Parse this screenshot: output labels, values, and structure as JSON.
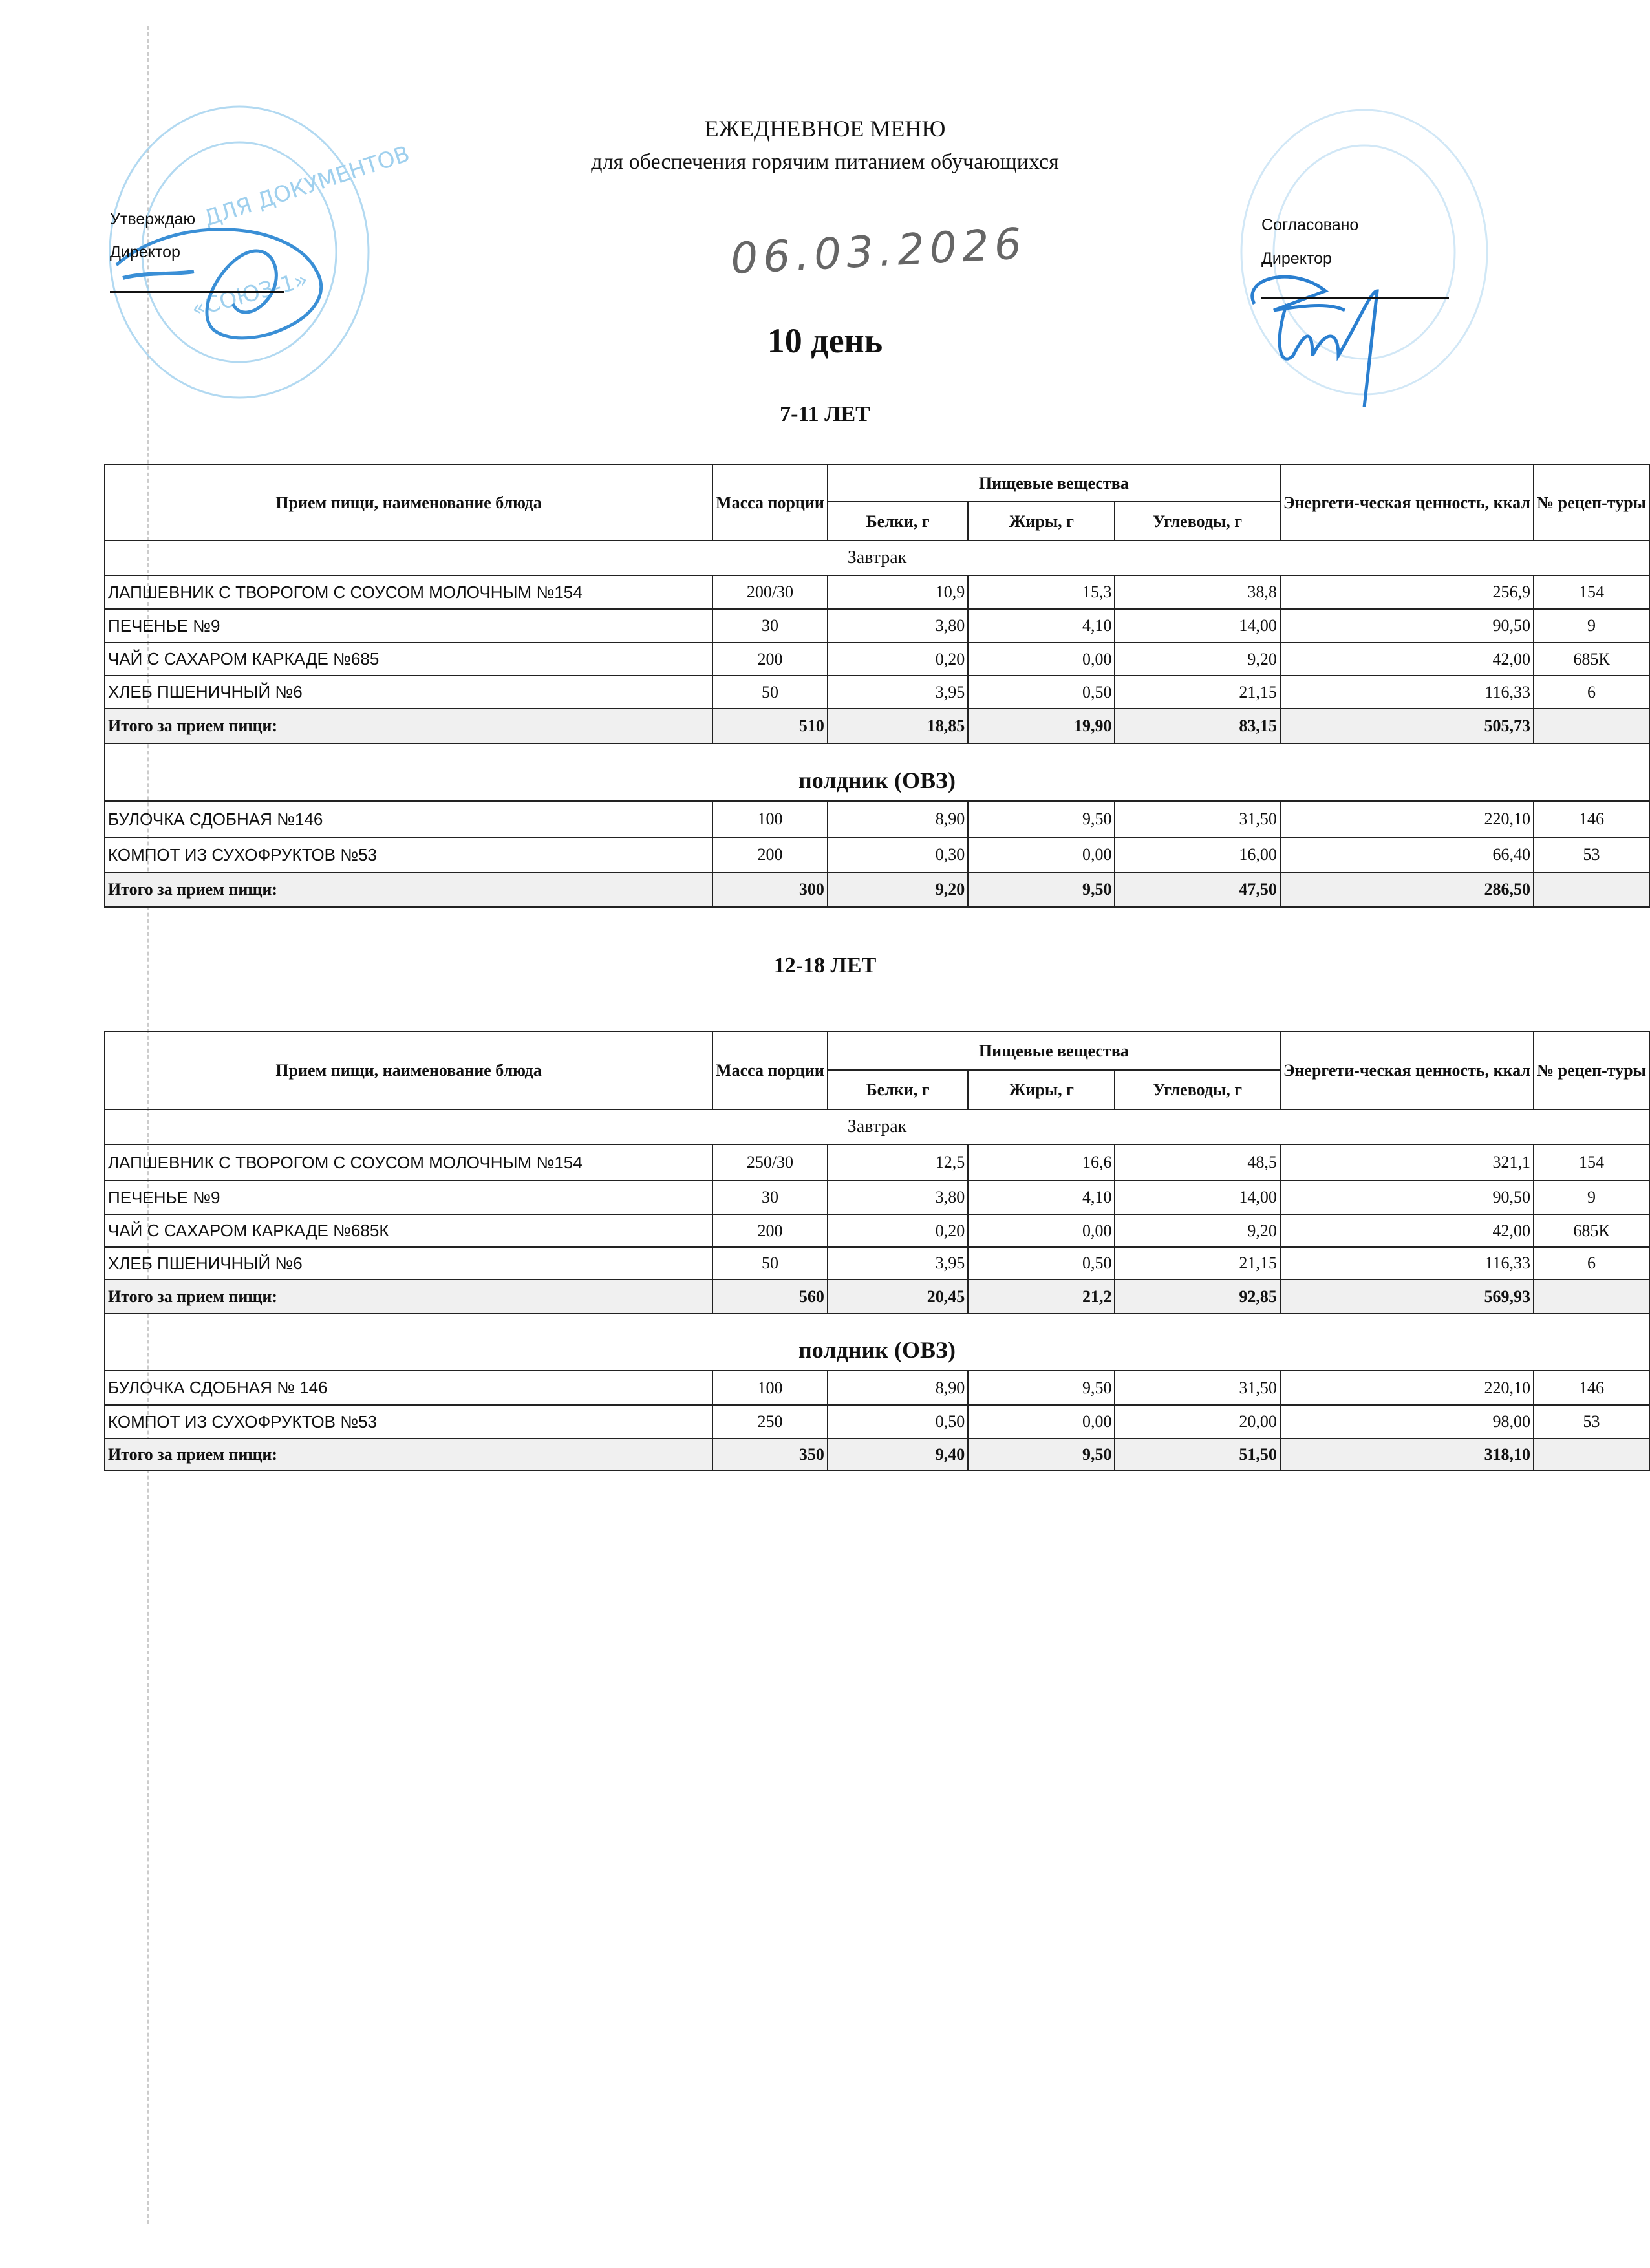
{
  "header": {
    "title": "ЕЖЕДНЕВНОЕ МЕНЮ",
    "subtitle": "для обеспечения горячим питанием обучающихся",
    "date": "06.03.2026",
    "day": "10 день"
  },
  "approve": {
    "label": "Утверждаю",
    "role": "Директор",
    "stamp_text": "ДЛЯ ДОКУМЕНТОВ · СОЮЗ"
  },
  "agree": {
    "label": "Согласовано",
    "role": "Директор"
  },
  "stamp_color": "#4aa8e0",
  "columns": {
    "name": "Прием пищи, наименование блюда",
    "mass": "Масса порции",
    "nutrients": "Пищевые вещества",
    "protein": "Белки, г",
    "fat": "Жиры, г",
    "carbs": "Углеводы, г",
    "energy": "Энергети-ческая ценность, ккал",
    "recipe": "№ рецеп-туры"
  },
  "sections": [
    {
      "age": "7-11 ЛЕТ",
      "meals": [
        {
          "title": "Завтрак",
          "rows": [
            [
              "ЛАПШЕВНИК С ТВОРОГОМ С СОУСОМ МОЛОЧНЫМ №154",
              "200/30",
              "10,9",
              "15,3",
              "38,8",
              "256,9",
              "154"
            ],
            [
              "ПЕЧЕНЬЕ №9",
              "30",
              "3,80",
              "4,10",
              "14,00",
              "90,50",
              "9"
            ],
            [
              "ЧАЙ С САХАРОМ КАРКАДЕ №685",
              "200",
              "0,20",
              "0,00",
              "9,20",
              "42,00",
              "685К"
            ],
            [
              "ХЛЕБ ПШЕНИЧНЫЙ №6",
              "50",
              "3,95",
              "0,50",
              "21,15",
              "116,33",
              "6"
            ]
          ],
          "total": [
            "Итого за прием пищи:",
            "510",
            "18,85",
            "19,90",
            "83,15",
            "505,73",
            ""
          ]
        },
        {
          "title": "полдник (ОВЗ)",
          "rows": [
            [
              "БУЛОЧКА СДОБНАЯ  №146",
              "100",
              "8,90",
              "9,50",
              "31,50",
              "220,10",
              "146"
            ],
            [
              "КОМПОТ ИЗ СУХОФРУКТОВ №53",
              "200",
              "0,30",
              "0,00",
              "16,00",
              "66,40",
              "53"
            ]
          ],
          "total": [
            "Итого за прием пищи:",
            "300",
            "9,20",
            "9,50",
            "47,50",
            "286,50",
            ""
          ]
        }
      ]
    },
    {
      "age": "12-18 ЛЕТ",
      "meals": [
        {
          "title": "Завтрак",
          "rows": [
            [
              "ЛАПШЕВНИК С ТВОРОГОМ С СОУСОМ МОЛОЧНЫМ №154",
              "250/30",
              "12,5",
              "16,6",
              "48,5",
              "321,1",
              "154"
            ],
            [
              "ПЕЧЕНЬЕ №9",
              "30",
              "3,80",
              "4,10",
              "14,00",
              "90,50",
              "9"
            ],
            [
              "ЧАЙ С САХАРОМ КАРКАДЕ №685К",
              "200",
              "0,20",
              "0,00",
              "9,20",
              "42,00",
              "685К"
            ],
            [
              "ХЛЕБ ПШЕНИЧНЫЙ №6",
              "50",
              "3,95",
              "0,50",
              "21,15",
              "116,33",
              "6"
            ]
          ],
          "total": [
            "Итого за прием пищи:",
            "560",
            "20,45",
            "21,2",
            "92,85",
            "569,93",
            ""
          ]
        },
        {
          "title": "полдник (ОВЗ)",
          "rows": [
            [
              "БУЛОЧКА СДОБНАЯ № 146",
              "100",
              "8,90",
              "9,50",
              "31,50",
              "220,10",
              "146"
            ],
            [
              "КОМПОТ ИЗ СУХОФРУКТОВ №53",
              "250",
              "0,50",
              "0,00",
              "20,00",
              "98,00",
              "53"
            ]
          ],
          "total": [
            "Итого за прием пищи:",
            "350",
            "9,40",
            "9,50",
            "51,50",
            "318,10",
            ""
          ]
        }
      ]
    }
  ]
}
